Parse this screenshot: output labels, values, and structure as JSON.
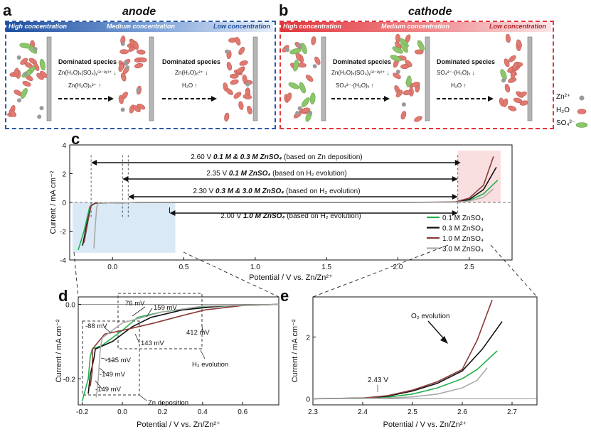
{
  "panel_a": {
    "label": "a",
    "title": "anode",
    "conc_high": "High concentration",
    "conc_medium": "Medium concentration",
    "conc_low": "Low concentration",
    "dom1": "Dominated species",
    "dom1_l1": "Zn(H₂O)ₓ(SO₄)ᵧ⁽²⁻²ʸ⁾⁺ ↓",
    "dom1_l2": "Zn(H₂O)₆²⁺ ↑",
    "dom2": "Dominated species",
    "dom2_l1": "Zn(H₂O)₆²⁺ ↓",
    "dom2_l2": "H₂O ↑"
  },
  "panel_b": {
    "label": "b",
    "title": "cathode",
    "conc_high": "High concentration",
    "conc_medium": "Medium concentration",
    "conc_low": "Low concentration",
    "dom1": "Dominated species",
    "dom1_l1": "Zn(H₂O)ₓ(SO₄)ᵧ⁽²⁻²ʸ⁾⁺ ↓",
    "dom1_l2": "SO₄²⁻·(H₂O)ₓ ↑",
    "dom2": "Dominated species",
    "dom2_l1": "SO₄²⁻·(H₂O)ₓ ↓",
    "dom2_l2": "H₂O ↑"
  },
  "legend_ab": {
    "zn": "Zn²⁺",
    "h2o": "H₂O",
    "so4": "SO₄²⁻"
  },
  "colors": {
    "anode_blue": "#2d5aa8",
    "cathode_red": "#e0373d",
    "c01": "#22b04b",
    "c03": "#111111",
    "c10": "#8b3a3a",
    "c30": "#aaaaaa"
  },
  "panel_c": {
    "label": "c",
    "windows": [
      {
        "v": "2.60 V",
        "bold": "0.1 M & 0.3 M ZnSO₄",
        "rest": "(based on Zn deposition)"
      },
      {
        "v": "2.35 V",
        "bold": "0.1 M ZnSO₄",
        "rest": "(based on H₂ evolution)"
      },
      {
        "v": "2.30 V",
        "bold": "0.3 M & 3.0 M ZnSO₄",
        "rest": "(based on H₂ evolution)"
      },
      {
        "v": "2.00 V",
        "bold": "1.0 M ZnSO₄",
        "rest": "(based on H₂ evolution)"
      }
    ]
  },
  "panel_d": {
    "label": "d",
    "annotations": [
      "76 mV",
      "159 mV",
      "-88 mV",
      "412 mV",
      "143 mV",
      "-135 mV",
      "-149 mV",
      "-149 mV",
      "H₂ evolution",
      "Zn deposition"
    ]
  },
  "panel_e": {
    "label": "e",
    "annotations": [
      "O₂ evolution",
      "2.43 V"
    ]
  },
  "chart_data": [
    {
      "type": "line",
      "panel": "c",
      "xlabel": "Potential / V vs. Zn/Zn²⁺",
      "ylabel": "Current / mA cm⁻²",
      "xlim": [
        -0.3,
        2.8
      ],
      "ylim": [
        -4,
        4
      ],
      "xticks": [
        "0.0",
        "0.5",
        "1.0",
        "1.5",
        "2.0",
        "2.5"
      ],
      "yticks": [
        "-4",
        "-2",
        "0",
        "2",
        "4"
      ],
      "legend": "bottom-right",
      "series": [
        {
          "name": "0.1 M ZnSO₄",
          "x": [
            -0.24,
            -0.2,
            -0.16,
            -0.12,
            0.2,
            1.0,
            2.0,
            2.4,
            2.5,
            2.6,
            2.7
          ],
          "y": [
            -3.3,
            -2.0,
            -0.3,
            -0.05,
            0,
            0,
            0,
            0.02,
            0.15,
            0.6,
            1.55
          ]
        },
        {
          "name": "0.3 M ZnSO₄",
          "x": [
            -0.21,
            -0.18,
            -0.15,
            -0.12,
            0.2,
            1.0,
            2.0,
            2.4,
            2.5,
            2.6,
            2.69
          ],
          "y": [
            -3.0,
            -1.5,
            -0.2,
            -0.05,
            0,
            0,
            0,
            0.02,
            0.2,
            0.9,
            2.45
          ]
        },
        {
          "name": "1.0 M ZnSO₄",
          "x": [
            -0.2,
            -0.17,
            -0.15,
            -0.12,
            0.2,
            1.0,
            2.0,
            2.4,
            2.5,
            2.6,
            2.67
          ],
          "y": [
            -2.8,
            -1.2,
            -0.2,
            -0.05,
            0,
            0,
            0,
            0.03,
            0.3,
            1.2,
            3.2
          ]
        },
        {
          "name": "3.0 M ZnSO₄",
          "x": [
            -0.13,
            -0.12,
            -0.11,
            -0.1,
            0.2,
            1.0,
            2.0,
            2.4,
            2.5,
            2.6,
            2.67
          ],
          "y": [
            -3.2,
            -1.5,
            -0.3,
            -0.05,
            0,
            0,
            0,
            0.01,
            0.1,
            0.35,
            0.95
          ]
        }
      ]
    },
    {
      "type": "line",
      "panel": "d",
      "xlabel": "Potential / V vs. Zn/Zn²⁺",
      "ylabel": "Current / mA cm⁻²",
      "xlim": [
        -0.22,
        0.78
      ],
      "ylim": [
        -0.27,
        0.02
      ],
      "xticks": [
        "-0.2",
        "0.0",
        "0.2",
        "0.4",
        "0.6"
      ],
      "yticks": [
        "0.0",
        "-0.2"
      ],
      "series": [
        {
          "name": "0.1 M ZnSO₄",
          "x": [
            -0.2,
            -0.17,
            -0.16,
            -0.15,
            -0.1,
            0.0,
            0.076,
            0.2,
            0.4,
            0.6,
            0.78
          ],
          "y": [
            -0.26,
            -0.2,
            -0.14,
            -0.12,
            -0.11,
            -0.07,
            -0.035,
            -0.02,
            -0.008,
            -0.002,
            0
          ]
        },
        {
          "name": "0.3 M ZnSO₄",
          "x": [
            -0.17,
            -0.16,
            -0.14,
            -0.135,
            -0.05,
            0.05,
            0.143,
            0.3,
            0.5,
            0.78
          ],
          "y": [
            -0.24,
            -0.19,
            -0.14,
            -0.12,
            -0.1,
            -0.06,
            -0.035,
            -0.015,
            -0.004,
            0
          ]
        },
        {
          "name": "1.0 M ZnSO₄",
          "x": [
            -0.16,
            -0.15,
            -0.149,
            -0.088,
            0.0,
            0.159,
            0.3,
            0.412,
            0.6,
            0.78
          ],
          "y": [
            -0.22,
            -0.18,
            -0.12,
            -0.08,
            -0.07,
            -0.05,
            -0.03,
            -0.015,
            -0.003,
            0
          ]
        },
        {
          "name": "3.0 M ZnSO₄",
          "x": [
            -0.13,
            -0.12,
            -0.11,
            -0.1,
            0.0,
            0.2,
            0.4,
            0.78
          ],
          "y": [
            -0.25,
            -0.2,
            -0.12,
            -0.09,
            -0.05,
            -0.02,
            -0.005,
            0
          ]
        }
      ]
    },
    {
      "type": "line",
      "panel": "e",
      "xlabel": "Potential / V vs. Zn/Zn²⁺",
      "ylabel": "Current / mA cm⁻²",
      "xlim": [
        2.3,
        2.75
      ],
      "ylim": [
        -0.2,
        3.3
      ],
      "xticks": [
        "2.3",
        "2.4",
        "2.5",
        "2.6",
        "2.7"
      ],
      "yticks": [
        "0",
        "2"
      ],
      "series": [
        {
          "name": "0.1 M ZnSO₄",
          "x": [
            2.3,
            2.4,
            2.45,
            2.5,
            2.55,
            2.6,
            2.63,
            2.67
          ],
          "y": [
            0,
            0.01,
            0.05,
            0.15,
            0.35,
            0.65,
            0.95,
            1.55
          ]
        },
        {
          "name": "0.3 M ZnSO₄",
          "x": [
            2.3,
            2.4,
            2.45,
            2.5,
            2.55,
            2.6,
            2.64,
            2.68
          ],
          "y": [
            0,
            0.02,
            0.08,
            0.25,
            0.5,
            0.9,
            1.6,
            2.5
          ]
        },
        {
          "name": "1.0 M ZnSO₄",
          "x": [
            2.3,
            2.4,
            2.45,
            2.5,
            2.55,
            2.6,
            2.63,
            2.66
          ],
          "y": [
            0,
            0.02,
            0.1,
            0.28,
            0.55,
            0.95,
            1.9,
            3.2
          ]
        },
        {
          "name": "3.0 M ZnSO₄",
          "x": [
            2.3,
            2.45,
            2.5,
            2.55,
            2.6,
            2.63,
            2.65
          ],
          "y": [
            0,
            0.02,
            0.06,
            0.15,
            0.35,
            0.6,
            1.0
          ]
        }
      ]
    }
  ]
}
